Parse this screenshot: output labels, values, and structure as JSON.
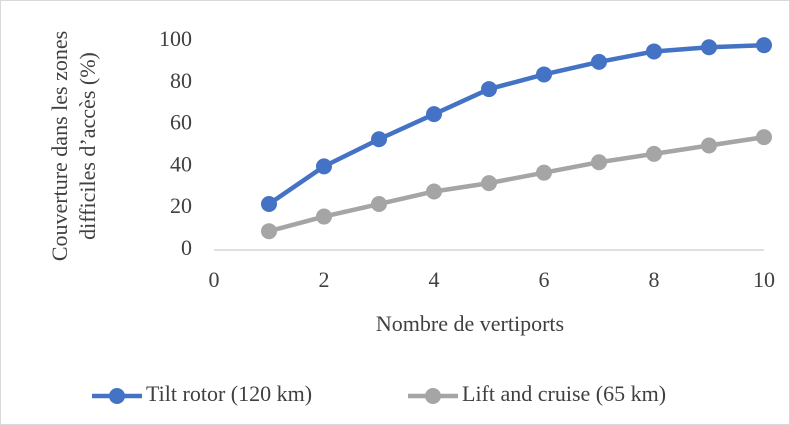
{
  "chart_data": {
    "type": "line",
    "xlabel": "Nombre de vertiports",
    "ylabel": [
      "Couverture dans les zones",
      "difficiles d’accès (%)"
    ],
    "x": [
      1,
      2,
      3,
      4,
      5,
      6,
      7,
      8,
      9,
      10
    ],
    "series": [
      {
        "name": "Tilt rotor (120 km)",
        "color": "#4472c4",
        "values": [
          22,
          40,
          53,
          65,
          77,
          84,
          90,
          95,
          97,
          98
        ]
      },
      {
        "name": "Lift and cruise (65 km)",
        "color": "#a5a5a5",
        "values": [
          9,
          16,
          22,
          28,
          32,
          37,
          42,
          46,
          50,
          54
        ]
      }
    ],
    "xlim": [
      0,
      10
    ],
    "xticks": [
      0,
      2,
      4,
      6,
      8,
      10
    ],
    "ylim": [
      0,
      100
    ],
    "yticks": [
      0,
      20,
      40,
      60,
      80,
      100
    ],
    "grid": false,
    "legend": "bottom"
  }
}
